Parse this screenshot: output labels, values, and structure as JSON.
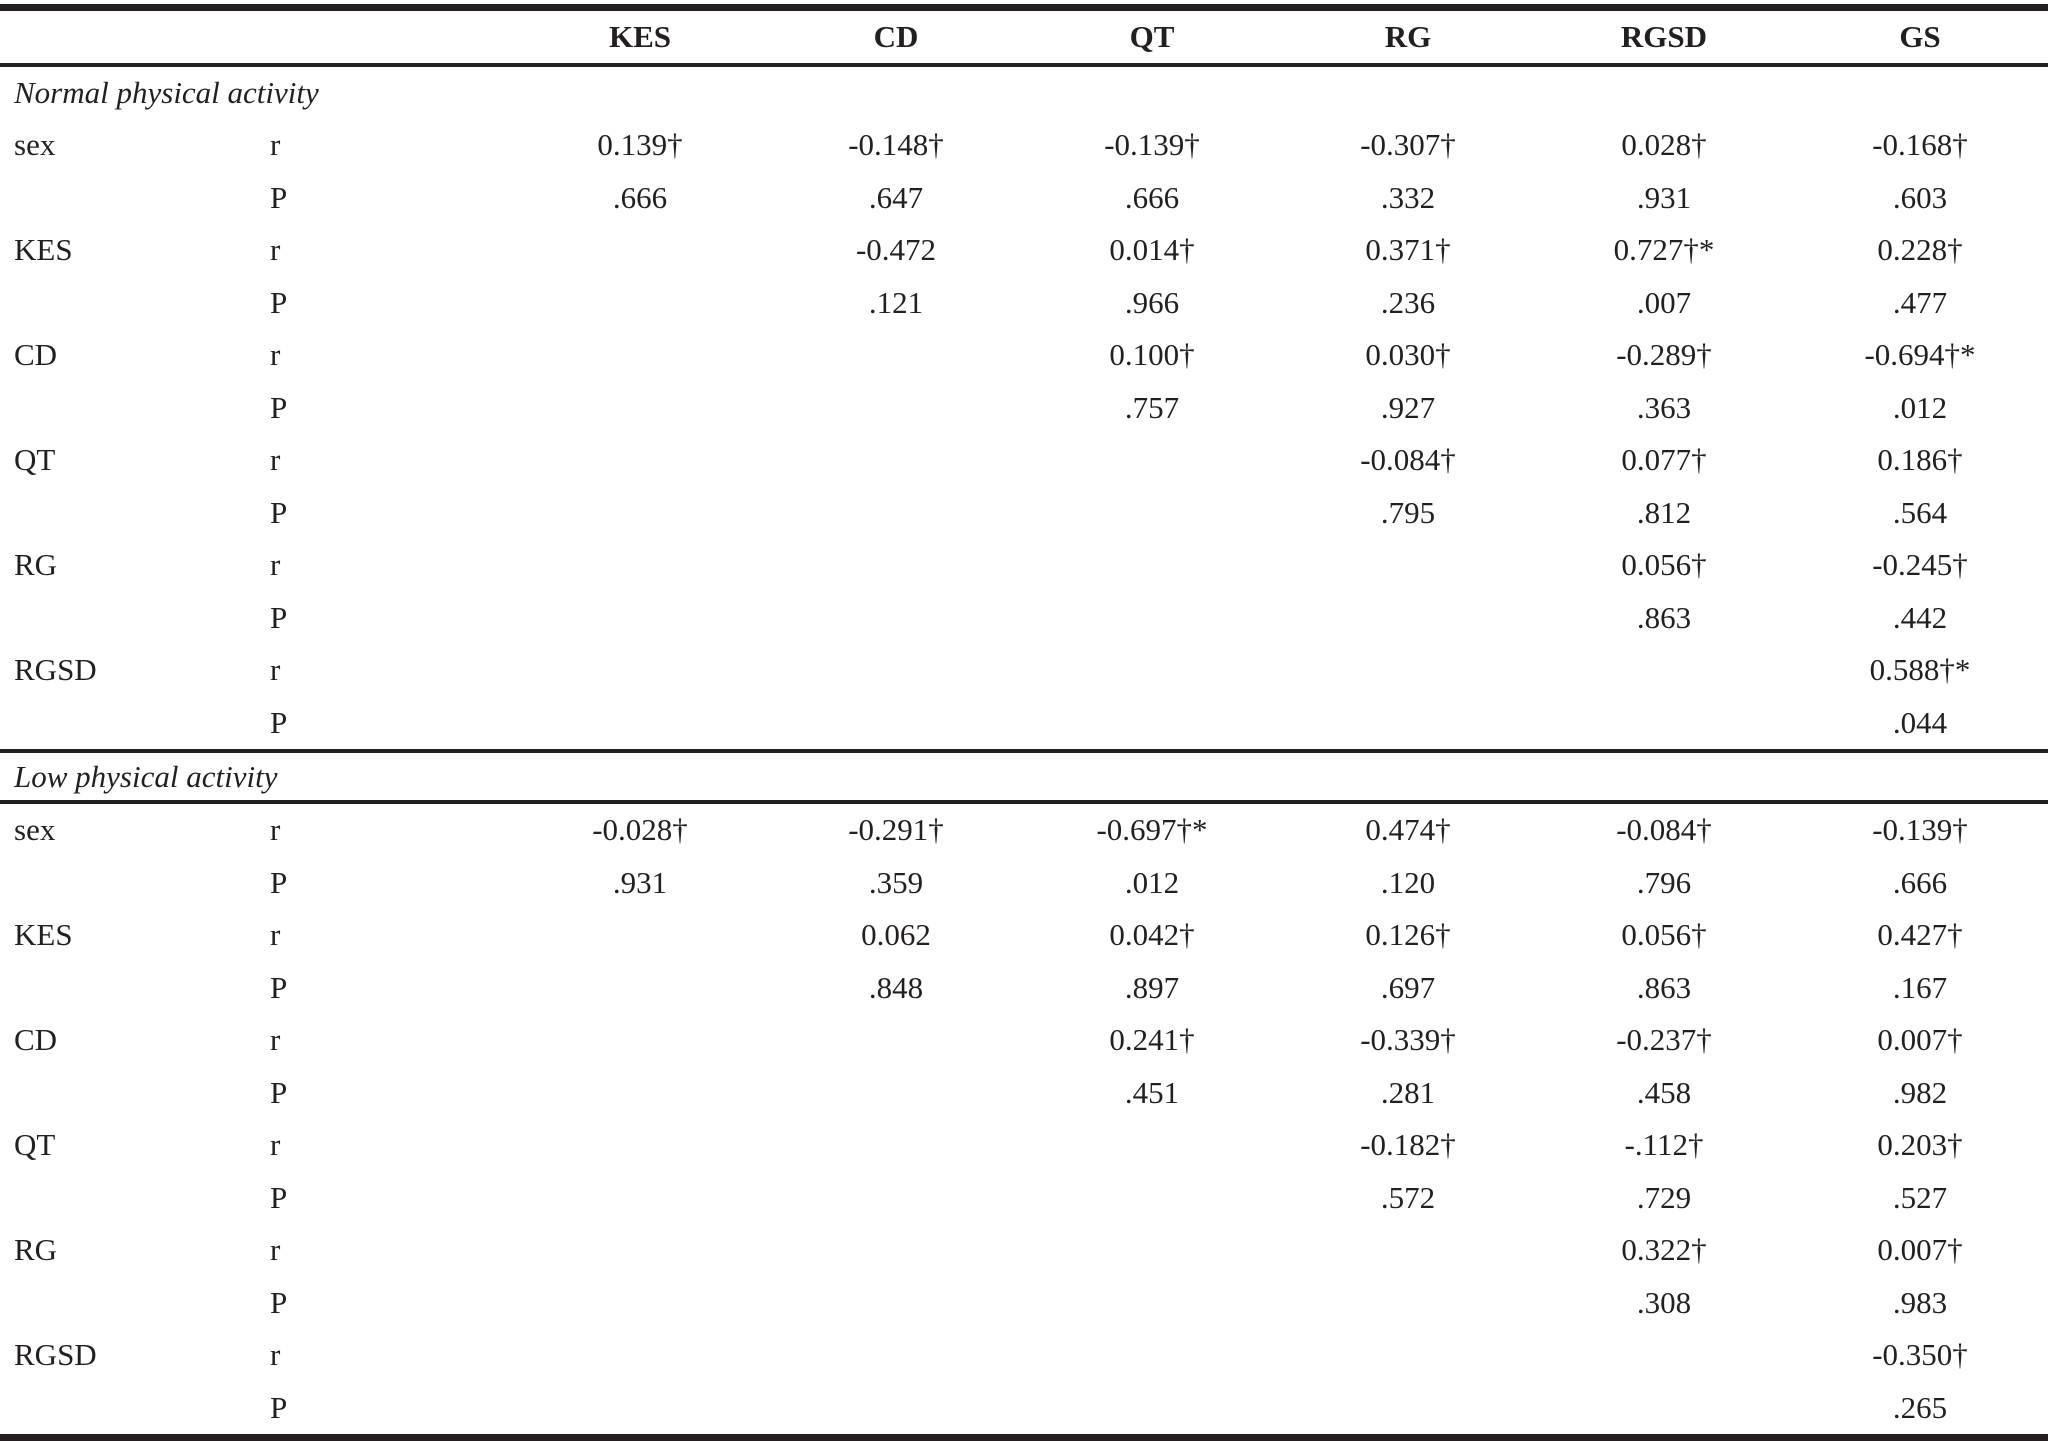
{
  "table": {
    "columns": [
      "",
      "",
      "KES",
      "CD",
      "QT",
      "RG",
      "RGSD",
      "GS"
    ],
    "sections": [
      {
        "title": "Normal physical activity",
        "rows": [
          {
            "var": "sex",
            "stat": "r",
            "values": [
              "0.139†",
              "-0.148†",
              "-0.139†",
              "-0.307†",
              "0.028†",
              "-0.168†"
            ]
          },
          {
            "var": "",
            "stat": "P",
            "values": [
              ".666",
              ".647",
              ".666",
              ".332",
              ".931",
              ".603"
            ]
          },
          {
            "var": "KES",
            "stat": "r",
            "values": [
              "",
              "-0.472",
              "0.014†",
              "0.371†",
              "0.727†*",
              "0.228†"
            ]
          },
          {
            "var": "",
            "stat": "P",
            "values": [
              "",
              ".121",
              ".966",
              ".236",
              ".007",
              ".477"
            ]
          },
          {
            "var": "CD",
            "stat": "r",
            "values": [
              "",
              "",
              "0.100†",
              "0.030†",
              "-0.289†",
              "-0.694†*"
            ]
          },
          {
            "var": "",
            "stat": "P",
            "values": [
              "",
              "",
              ".757",
              ".927",
              ".363",
              ".012"
            ]
          },
          {
            "var": "QT",
            "stat": "r",
            "values": [
              "",
              "",
              "",
              "-0.084†",
              "0.077†",
              "0.186†"
            ]
          },
          {
            "var": "",
            "stat": "P",
            "values": [
              "",
              "",
              "",
              ".795",
              ".812",
              ".564"
            ]
          },
          {
            "var": "RG",
            "stat": "r",
            "values": [
              "",
              "",
              "",
              "",
              "0.056†",
              "-0.245†"
            ]
          },
          {
            "var": "",
            "stat": "P",
            "values": [
              "",
              "",
              "",
              "",
              ".863",
              ".442"
            ]
          },
          {
            "var": "RGSD",
            "stat": "r",
            "values": [
              "",
              "",
              "",
              "",
              "",
              "0.588†*"
            ]
          },
          {
            "var": "",
            "stat": "P",
            "values": [
              "",
              "",
              "",
              "",
              "",
              ".044"
            ]
          }
        ]
      },
      {
        "title": "Low physical activity",
        "rows": [
          {
            "var": "sex",
            "stat": "r",
            "values": [
              "-0.028†",
              "-0.291†",
              "-0.697†*",
              "0.474†",
              "-0.084†",
              "-0.139†"
            ]
          },
          {
            "var": "",
            "stat": "P",
            "values": [
              ".931",
              ".359",
              ".012",
              ".120",
              ".796",
              ".666"
            ]
          },
          {
            "var": "KES",
            "stat": "r",
            "values": [
              "",
              "0.062",
              "0.042†",
              "0.126†",
              "0.056†",
              "0.427†"
            ]
          },
          {
            "var": "",
            "stat": "P",
            "values": [
              "",
              ".848",
              ".897",
              ".697",
              ".863",
              ".167"
            ]
          },
          {
            "var": "CD",
            "stat": "r",
            "values": [
              "",
              "",
              "0.241†",
              "-0.339†",
              "-0.237†",
              "0.007†"
            ]
          },
          {
            "var": "",
            "stat": "P",
            "values": [
              "",
              "",
              ".451",
              ".281",
              ".458",
              ".982"
            ]
          },
          {
            "var": "QT",
            "stat": "r",
            "values": [
              "",
              "",
              "",
              "-0.182†",
              "-.112†",
              "0.203†"
            ]
          },
          {
            "var": "",
            "stat": "P",
            "values": [
              "",
              "",
              "",
              ".572",
              ".729",
              ".527"
            ]
          },
          {
            "var": "RG",
            "stat": "r",
            "values": [
              "",
              "",
              "",
              "",
              "0.322†",
              "0.007†"
            ]
          },
          {
            "var": "",
            "stat": "P",
            "values": [
              "",
              "",
              "",
              "",
              ".308",
              ".983"
            ]
          },
          {
            "var": "RGSD",
            "stat": "r",
            "values": [
              "",
              "",
              "",
              "",
              "",
              "-0.350†"
            ]
          },
          {
            "var": "",
            "stat": "P",
            "values": [
              "",
              "",
              "",
              "",
              "",
              ".265"
            ]
          }
        ]
      }
    ]
  }
}
